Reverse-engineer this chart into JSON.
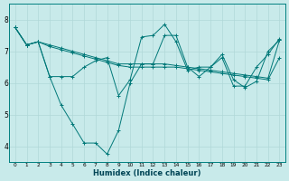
{
  "xlabel": "Humidex (Indice chaleur)",
  "background_color": "#c8eaea",
  "grid_color": "#b0d8d8",
  "line_color": "#007878",
  "xlim": [
    -0.5,
    23.5
  ],
  "ylim": [
    3.5,
    8.5
  ],
  "yticks": [
    4,
    5,
    6,
    7,
    8
  ],
  "xticks": [
    0,
    1,
    2,
    3,
    4,
    5,
    6,
    7,
    8,
    9,
    10,
    11,
    12,
    13,
    14,
    15,
    16,
    17,
    18,
    19,
    20,
    21,
    22,
    23
  ],
  "series": [
    [
      7.75,
      7.2,
      7.3,
      6.2,
      5.3,
      4.7,
      4.1,
      4.1,
      3.75,
      4.5,
      6.0,
      6.6,
      6.6,
      7.5,
      7.5,
      6.5,
      6.2,
      6.5,
      6.8,
      5.9,
      5.9,
      6.5,
      6.9,
      7.4
    ],
    [
      7.75,
      7.2,
      7.3,
      7.15,
      7.05,
      6.95,
      6.85,
      6.75,
      6.65,
      6.55,
      6.5,
      6.5,
      6.5,
      6.5,
      6.5,
      6.45,
      6.4,
      6.35,
      6.3,
      6.25,
      6.2,
      6.15,
      6.1,
      6.8
    ],
    [
      7.75,
      7.2,
      7.3,
      7.2,
      7.1,
      7.0,
      6.9,
      6.8,
      6.7,
      6.6,
      6.6,
      6.6,
      6.6,
      6.6,
      6.55,
      6.5,
      6.45,
      6.4,
      6.35,
      6.3,
      6.25,
      6.2,
      6.15,
      7.35
    ],
    [
      7.75,
      7.2,
      7.3,
      6.2,
      6.2,
      6.2,
      6.5,
      6.7,
      6.8,
      5.6,
      6.1,
      7.45,
      7.5,
      7.85,
      7.3,
      6.4,
      6.5,
      6.5,
      6.9,
      6.1,
      5.85,
      6.05,
      7.0,
      7.35
    ]
  ]
}
